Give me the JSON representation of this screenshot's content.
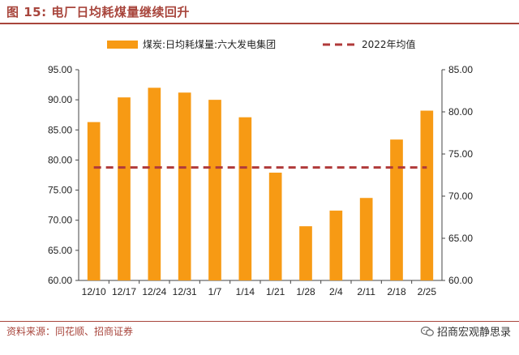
{
  "header": {
    "title": "图 15:  电厂日均耗煤量继续回升"
  },
  "footer": {
    "source": "资料来源：同花顺、招商证券",
    "brand": "招商宏观静思录",
    "brand_icon": "wechat-icon"
  },
  "colors": {
    "title": "#a8453c",
    "bar": "#f79a14",
    "avg_line": "#b03a3a"
  },
  "chart_data": {
    "type": "bar",
    "categories": [
      "12/10",
      "12/17",
      "12/24",
      "12/31",
      "1/7",
      "1/14",
      "1/21",
      "1/28",
      "2/4",
      "2/11",
      "2/18",
      "2/25"
    ],
    "series": [
      {
        "name": "煤炭:日均耗煤量:六大发电集团",
        "kind": "bar",
        "axis": "left",
        "values": [
          86.3,
          90.4,
          92.0,
          91.2,
          90.0,
          87.1,
          77.9,
          69.0,
          71.6,
          73.7,
          83.4,
          88.2
        ]
      },
      {
        "name": "2022年均值",
        "kind": "dashed-line",
        "axis": "right",
        "values": [
          73.4,
          73.4,
          73.4,
          73.4,
          73.4,
          73.4,
          73.4,
          73.4,
          73.4,
          73.4,
          73.4,
          73.4
        ]
      }
    ],
    "y_left": {
      "min": 60,
      "max": 95,
      "step": 5,
      "ticks": [
        "60.00",
        "65.00",
        "70.00",
        "75.00",
        "80.00",
        "85.00",
        "90.00",
        "95.00"
      ]
    },
    "y_right": {
      "min": 60,
      "max": 85,
      "step": 5,
      "ticks": [
        "60.00",
        "65.00",
        "70.00",
        "75.00",
        "80.00",
        "85.00"
      ]
    },
    "legend": "top-center",
    "grid": false
  }
}
